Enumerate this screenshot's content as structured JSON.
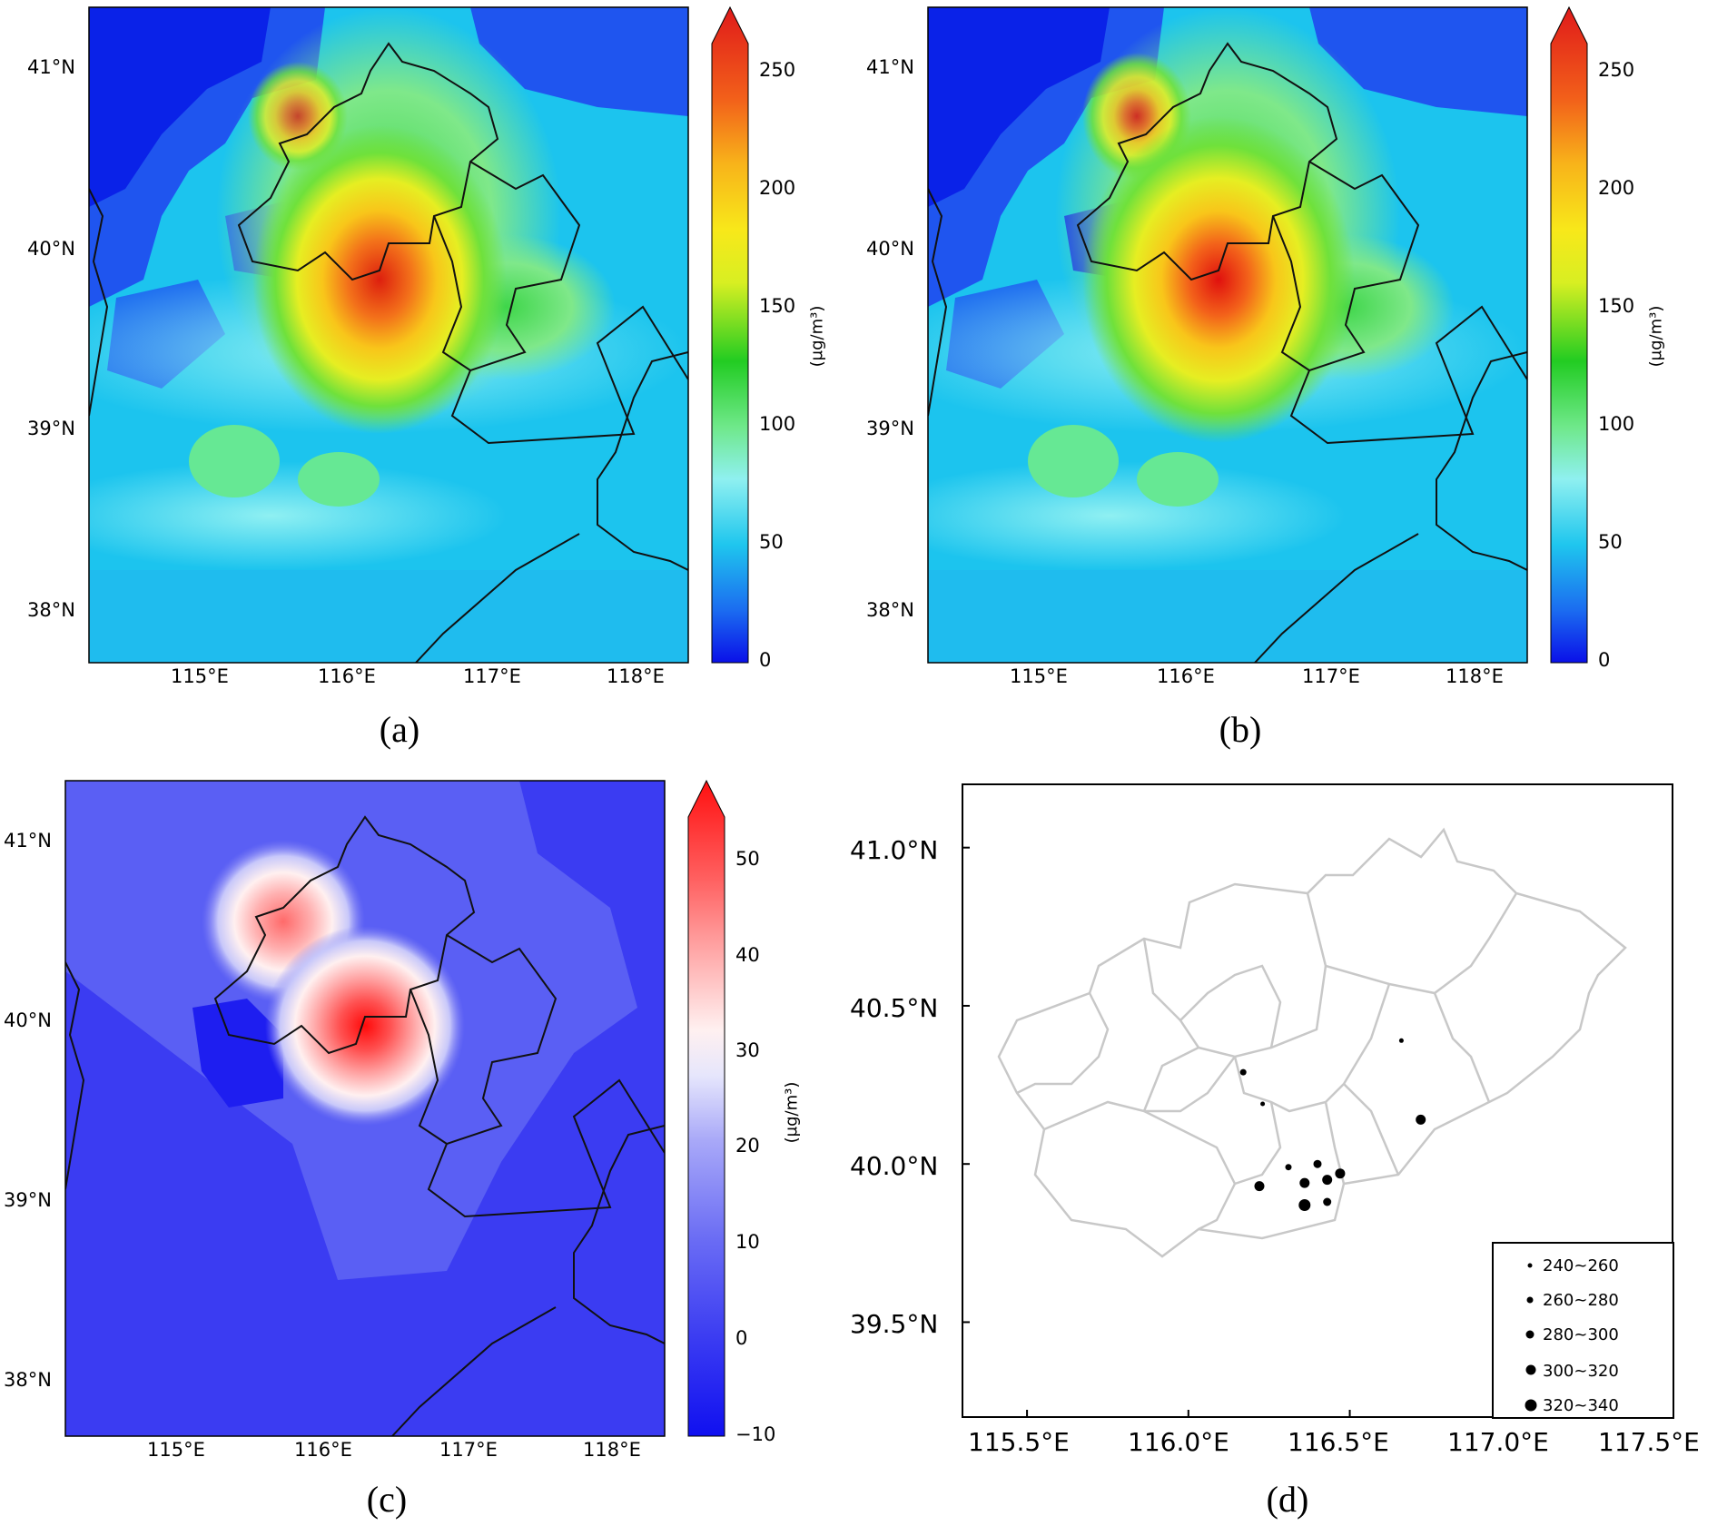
{
  "panels": {
    "a": {
      "caption": "(a)",
      "lat_labels": [
        "41°N",
        "40°N",
        "39°N",
        "38°N"
      ],
      "lon_labels": [
        "115°E",
        "116°E",
        "117°E",
        "118°E"
      ],
      "colorbar": {
        "ticks": [
          "250",
          "200",
          "150",
          "100",
          "50",
          "0"
        ],
        "unit": "(μg/m³)"
      },
      "colors": {
        "peak": "#dd2a10",
        "mid": "#f3e61a",
        "low": "#1a55f0",
        "base": "#1fc6ee"
      }
    },
    "b": {
      "caption": "(b)",
      "lat_labels": [
        "41°N",
        "40°N",
        "39°N",
        "38°N"
      ],
      "lon_labels": [
        "115°E",
        "116°E",
        "117°E",
        "118°E"
      ],
      "colorbar": {
        "ticks": [
          "250",
          "200",
          "150",
          "100",
          "50",
          "0"
        ],
        "unit": "(μg/m³)"
      }
    },
    "c": {
      "caption": "(c)",
      "lat_labels": [
        "41°N",
        "40°N",
        "39°N",
        "38°N"
      ],
      "lon_labels": [
        "115°E",
        "116°E",
        "117°E",
        "118°E"
      ],
      "colorbar": {
        "ticks": [
          "50",
          "40",
          "30",
          "20",
          "10",
          "0",
          "−10"
        ],
        "unit": "(μg/m³)"
      },
      "colors": {
        "peak": "#ff0a0a",
        "base": "#4a48f4"
      }
    },
    "d": {
      "caption": "(d)",
      "lat_labels": [
        "41.0°N",
        "40.5°N",
        "40.0°N",
        "39.5°N"
      ],
      "lon_labels": [
        "115.5°E",
        "116.0°E",
        "116.5°E",
        "117.0°E",
        "117.5°E"
      ],
      "legend": [
        "240~260",
        "260~280",
        "280~300",
        "300~320",
        "320~340"
      ],
      "stations": [
        {
          "lon": 116.17,
          "lat": 40.29,
          "cls": 2
        },
        {
          "lon": 116.23,
          "lat": 40.19,
          "cls": 1
        },
        {
          "lon": 116.66,
          "lat": 40.39,
          "cls": 1
        },
        {
          "lon": 116.72,
          "lat": 40.14,
          "cls": 4
        },
        {
          "lon": 116.31,
          "lat": 39.99,
          "cls": 2
        },
        {
          "lon": 116.4,
          "lat": 40.0,
          "cls": 3
        },
        {
          "lon": 116.47,
          "lat": 39.97,
          "cls": 4
        },
        {
          "lon": 116.43,
          "lat": 39.95,
          "cls": 4
        },
        {
          "lon": 116.36,
          "lat": 39.94,
          "cls": 4
        },
        {
          "lon": 116.22,
          "lat": 39.93,
          "cls": 4
        },
        {
          "lon": 116.43,
          "lat": 39.88,
          "cls": 3
        },
        {
          "lon": 116.36,
          "lat": 39.87,
          "cls": 5
        }
      ]
    }
  }
}
